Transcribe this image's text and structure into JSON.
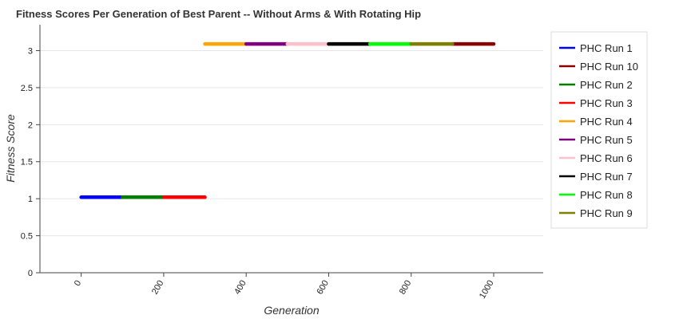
{
  "chart_data": {
    "type": "line",
    "title": "Fitness Scores Per Generation of Best Parent -- Without Arms & With Rotating Hip",
    "xlabel": "Generation",
    "ylabel": "Fitness Score",
    "xlim": [
      -100,
      1120
    ],
    "ylim": [
      0,
      3.35
    ],
    "xticks": [
      0,
      200,
      400,
      600,
      800,
      1000
    ],
    "yticks": [
      0,
      0.5,
      1,
      1.5,
      2,
      2.5,
      3
    ],
    "xtick_labels": [
      "0",
      "200",
      "400",
      "600",
      "800",
      "1000"
    ],
    "ytick_labels": [
      "0",
      "0.5",
      "1",
      "1.5",
      "2",
      "2.5",
      "3"
    ],
    "grid": true,
    "legend_placement": "right",
    "series": [
      {
        "name": "PHC Run 1",
        "color": "#0000ff",
        "x": [
          0,
          100
        ],
        "y": [
          1.02,
          1.02
        ]
      },
      {
        "name": "PHC Run 10",
        "color": "#8b0000",
        "x": [
          900,
          1000
        ],
        "y": [
          3.09,
          3.09
        ]
      },
      {
        "name": "PHC Run 2",
        "color": "#008000",
        "x": [
          100,
          200
        ],
        "y": [
          1.02,
          1.02
        ]
      },
      {
        "name": "PHC Run 3",
        "color": "#ff0000",
        "x": [
          200,
          300
        ],
        "y": [
          1.02,
          1.02
        ]
      },
      {
        "name": "PHC Run 4",
        "color": "#ffa500",
        "x": [
          300,
          400
        ],
        "y": [
          3.09,
          3.09
        ]
      },
      {
        "name": "PHC Run 5",
        "color": "#800080",
        "x": [
          400,
          500
        ],
        "y": [
          3.09,
          3.09
        ]
      },
      {
        "name": "PHC Run 6",
        "color": "#ffc0cb",
        "x": [
          500,
          600
        ],
        "y": [
          3.09,
          3.09
        ]
      },
      {
        "name": "PHC Run 7",
        "color": "#000000",
        "x": [
          600,
          700
        ],
        "y": [
          3.09,
          3.09
        ]
      },
      {
        "name": "PHC Run 8",
        "color": "#00ff00",
        "x": [
          700,
          800
        ],
        "y": [
          3.09,
          3.09
        ]
      },
      {
        "name": "PHC Run 9",
        "color": "#808000",
        "x": [
          800,
          900
        ],
        "y": [
          3.09,
          3.09
        ]
      }
    ]
  }
}
